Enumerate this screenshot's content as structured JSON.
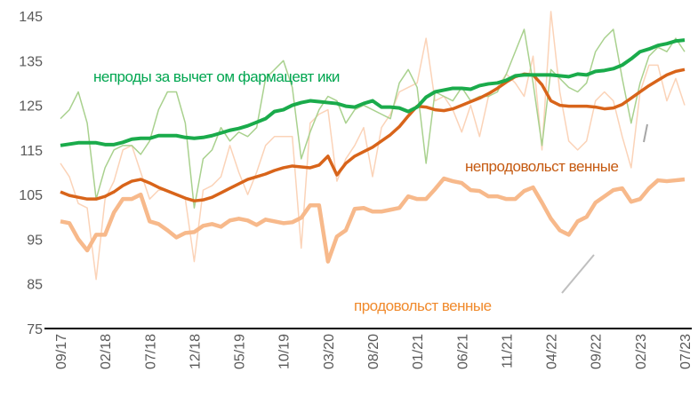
{
  "chart_data": {
    "type": "line",
    "categories": [
      "09/17",
      null,
      null,
      null,
      null,
      "02/18",
      null,
      null,
      null,
      null,
      "07/18",
      null,
      null,
      null,
      null,
      "12/18",
      null,
      null,
      null,
      null,
      "05/19",
      null,
      null,
      null,
      null,
      "10/19",
      null,
      null,
      null,
      null,
      "03/20",
      null,
      null,
      null,
      null,
      "08/20",
      null,
      null,
      null,
      null,
      "01/21",
      null,
      null,
      null,
      null,
      "06/21",
      null,
      null,
      null,
      null,
      "11/21",
      null,
      null,
      null,
      null,
      "04/22",
      null,
      null,
      null,
      null,
      "09/22",
      null,
      null,
      null,
      null,
      "02/23",
      null,
      null,
      null,
      null,
      "07/23"
    ],
    "ylim": [
      75,
      145
    ],
    "yticks": [
      75,
      85,
      95,
      105,
      115,
      125,
      135,
      145
    ],
    "grid": false,
    "series": [
      {
        "color": "#fbd3b8",
        "width": 1.5,
        "values": [
          112,
          109,
          103,
          102,
          86,
          104,
          108,
          115,
          116,
          110,
          104,
          106,
          106,
          105,
          104,
          90,
          106,
          107,
          109,
          116,
          110,
          105,
          110,
          116,
          118,
          118,
          118,
          93,
          121,
          123,
          124,
          108,
          113,
          116,
          120,
          109,
          120,
          123,
          128,
          129,
          130,
          140,
          126,
          127,
          124,
          119,
          125,
          118,
          127,
          129,
          132,
          130,
          127,
          136,
          115,
          146,
          128,
          117,
          115,
          117,
          126,
          128,
          126,
          118,
          111,
          128,
          134,
          134,
          126,
          131,
          125
        ]
      },
      {
        "color": "#a9d18e",
        "width": 1.5,
        "values": [
          122,
          124,
          128,
          121,
          104,
          111,
          115,
          116,
          116,
          114,
          117,
          124,
          128,
          128,
          121,
          102,
          113,
          115,
          120,
          117,
          119,
          118,
          120,
          131,
          133,
          135,
          129,
          113,
          119,
          124,
          127,
          126,
          121,
          124,
          125,
          124,
          123,
          122,
          130,
          133,
          129,
          112,
          128,
          127,
          126,
          129,
          126,
          127,
          127,
          128,
          132,
          137,
          142,
          130,
          116,
          133,
          131,
          129,
          128,
          130,
          137,
          140,
          142,
          131,
          121,
          130,
          136,
          138,
          137,
          140,
          137
        ]
      },
      {
        "name": "непроды  за вычет ом фармацевт ики",
        "color": "#f7b98b",
        "width": 4.5,
        "values": [
          99,
          98.6,
          95,
          92.5,
          96,
          96,
          101,
          104,
          104,
          105,
          99,
          98.4,
          97,
          95.4,
          96.4,
          96.6,
          98,
          98.4,
          97.8,
          99.2,
          99.6,
          99.2,
          98.2,
          99.4,
          99,
          98.6,
          98.8,
          99.8,
          102.6,
          102.6,
          90,
          95.6,
          97,
          101.8,
          102,
          101.2,
          101.2,
          101.6,
          102,
          104.6,
          104,
          104,
          106.2,
          108.6,
          108,
          107.6,
          106,
          105.8,
          104.6,
          104.6,
          104,
          104,
          105.8,
          106.6,
          103.2,
          99.6,
          97,
          96,
          99,
          100,
          103.2,
          104.6,
          106,
          106.4,
          103.4,
          104,
          106.4,
          108.2,
          108,
          108.2,
          108.4
        ]
      },
      {
        "name": "непродовольст венные",
        "color": "#d8641a",
        "width": 3.5,
        "values": [
          105.6,
          104.8,
          104.4,
          104,
          104,
          104.6,
          105.6,
          107,
          108,
          108.4,
          107.6,
          106.6,
          105.8,
          105,
          104.2,
          103.6,
          103.8,
          104.4,
          105.4,
          106.4,
          107.4,
          108.4,
          109,
          109.6,
          110.4,
          111,
          111.4,
          111.2,
          111,
          111.6,
          113.6,
          109.4,
          112,
          113.6,
          114.6,
          115.6,
          117,
          118.4,
          120.2,
          122.6,
          124.8,
          124.6,
          124,
          123.8,
          124.2,
          125,
          125.8,
          126.6,
          127.6,
          128.8,
          130.2,
          131.4,
          132,
          131.8,
          129.6,
          126,
          125,
          124.8,
          124.8,
          124.8,
          124.6,
          124.2,
          124.4,
          125.2,
          126.6,
          128,
          129.4,
          130.6,
          131.8,
          132.6,
          133
        ]
      },
      {
        "name": "продовольст венные",
        "color": "#1aab4b",
        "width": 4,
        "values": [
          116,
          116.3,
          116.6,
          116.6,
          116.6,
          116.2,
          116.2,
          116.7,
          117.4,
          117.6,
          117.6,
          118.2,
          118.2,
          118.2,
          117.8,
          117.6,
          117.8,
          118.2,
          118.8,
          119.4,
          119.8,
          120.4,
          121.2,
          122,
          123.6,
          124,
          125,
          125.6,
          126,
          125.8,
          125.6,
          125.4,
          124.8,
          124.6,
          125.4,
          126,
          124.6,
          124.6,
          124.4,
          123.6,
          124.6,
          126.8,
          128,
          128.4,
          128.8,
          128.8,
          128.6,
          129.4,
          129.8,
          130,
          130.6,
          131.6,
          131.8,
          131.8,
          131.8,
          131.8,
          131.6,
          131.4,
          132,
          131.8,
          132.6,
          132.8,
          133.2,
          134,
          135.4,
          137,
          137.6,
          138.4,
          138.8,
          139.4,
          139.6
        ]
      }
    ]
  }
}
